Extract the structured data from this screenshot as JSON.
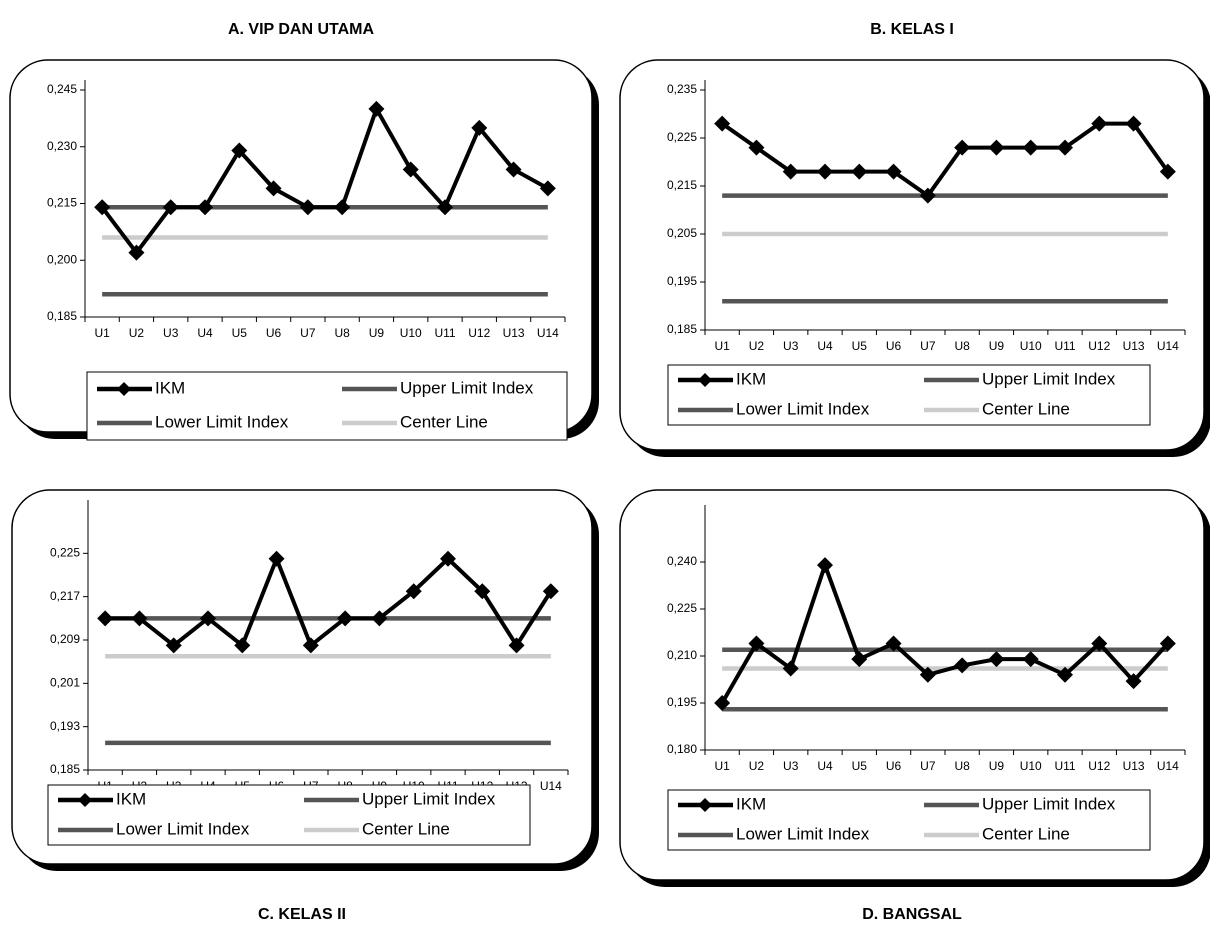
{
  "chart_data": [
    {
      "type": "line",
      "title": "A. VIP DAN UTAMA",
      "title_position": "top",
      "categories": [
        "U1",
        "U2",
        "U3",
        "U4",
        "U5",
        "U6",
        "U7",
        "U8",
        "U9",
        "U10",
        "U11",
        "U12",
        "U13",
        "U14"
      ],
      "ylim": [
        0.185,
        0.245
      ],
      "yticks": [
        {
          "value": 0.185,
          "label": "0,185"
        },
        {
          "value": 0.2,
          "label": "0,200"
        },
        {
          "value": 0.215,
          "label": "0,215"
        },
        {
          "value": 0.23,
          "label": "0,230"
        },
        {
          "value": 0.245,
          "label": "0,245"
        }
      ],
      "series": [
        {
          "name": "IKM",
          "color": "#000000",
          "marker": "diamond",
          "values": [
            0.214,
            0.202,
            0.214,
            0.214,
            0.229,
            0.219,
            0.214,
            0.214,
            0.24,
            0.224,
            0.214,
            0.235,
            0.224,
            0.219
          ]
        },
        {
          "name": "Upper Limit Index",
          "color": "#555555",
          "values": [
            0.214,
            0.214,
            0.214,
            0.214,
            0.214,
            0.214,
            0.214,
            0.214,
            0.214,
            0.214,
            0.214,
            0.214,
            0.214,
            0.214
          ]
        },
        {
          "name": "Lower Limit Index",
          "color": "#555555",
          "values": [
            0.191,
            0.191,
            0.191,
            0.191,
            0.191,
            0.191,
            0.191,
            0.191,
            0.191,
            0.191,
            0.191,
            0.191,
            0.191,
            0.191
          ]
        },
        {
          "name": "Center Line",
          "color": "#cccccc",
          "values": [
            0.206,
            0.206,
            0.206,
            0.206,
            0.206,
            0.206,
            0.206,
            0.206,
            0.206,
            0.206,
            0.206,
            0.206,
            0.206,
            0.206
          ]
        }
      ]
    },
    {
      "type": "line",
      "title": "B. KELAS I",
      "title_position": "top",
      "categories": [
        "U1",
        "U2",
        "U3",
        "U4",
        "U5",
        "U6",
        "U7",
        "U8",
        "U9",
        "U10",
        "U11",
        "U12",
        "U13",
        "U14"
      ],
      "ylim": [
        0.185,
        0.235
      ],
      "yticks": [
        {
          "value": 0.185,
          "label": "0,185"
        },
        {
          "value": 0.195,
          "label": "0,195"
        },
        {
          "value": 0.205,
          "label": "0,205"
        },
        {
          "value": 0.215,
          "label": "0,215"
        },
        {
          "value": 0.225,
          "label": "0,225"
        },
        {
          "value": 0.235,
          "label": "0,235"
        }
      ],
      "series": [
        {
          "name": "IKM",
          "color": "#000000",
          "marker": "diamond",
          "values": [
            0.228,
            0.223,
            0.218,
            0.218,
            0.218,
            0.218,
            0.213,
            0.223,
            0.223,
            0.223,
            0.223,
            0.228,
            0.228,
            0.218
          ]
        },
        {
          "name": "Upper Limit Index",
          "color": "#555555",
          "values": [
            0.213,
            0.213,
            0.213,
            0.213,
            0.213,
            0.213,
            0.213,
            0.213,
            0.213,
            0.213,
            0.213,
            0.213,
            0.213,
            0.213
          ]
        },
        {
          "name": "Lower Limit Index",
          "color": "#555555",
          "values": [
            0.191,
            0.191,
            0.191,
            0.191,
            0.191,
            0.191,
            0.191,
            0.191,
            0.191,
            0.191,
            0.191,
            0.191,
            0.191,
            0.191
          ]
        },
        {
          "name": "Center Line",
          "color": "#cccccc",
          "values": [
            0.205,
            0.205,
            0.205,
            0.205,
            0.205,
            0.205,
            0.205,
            0.205,
            0.205,
            0.205,
            0.205,
            0.205,
            0.205,
            0.205
          ]
        }
      ]
    },
    {
      "type": "line",
      "title": "C. KELAS II",
      "title_position": "bottom",
      "categories": [
        "U1",
        "U2",
        "U3",
        "U4",
        "U5",
        "U6",
        "U7",
        "U8",
        "U9",
        "U10",
        "U11",
        "U12",
        "U13",
        "U14"
      ],
      "ylim": [
        0.185,
        0.233
      ],
      "yticks": [
        {
          "value": 0.185,
          "label": "0,185"
        },
        {
          "value": 0.193,
          "label": "0,193"
        },
        {
          "value": 0.201,
          "label": "0,201"
        },
        {
          "value": 0.209,
          "label": "0,209"
        },
        {
          "value": 0.217,
          "label": "0,217"
        },
        {
          "value": 0.225,
          "label": "0,225"
        }
      ],
      "series": [
        {
          "name": "IKM",
          "color": "#000000",
          "marker": "diamond",
          "values": [
            0.213,
            0.213,
            0.208,
            0.213,
            0.208,
            0.224,
            0.208,
            0.213,
            0.213,
            0.218,
            0.224,
            0.218,
            0.208,
            0.218
          ]
        },
        {
          "name": "Upper Limit Index",
          "color": "#555555",
          "values": [
            0.213,
            0.213,
            0.213,
            0.213,
            0.213,
            0.213,
            0.213,
            0.213,
            0.213,
            0.213,
            0.213,
            0.213,
            0.213,
            0.213
          ]
        },
        {
          "name": "Lower Limit Index",
          "color": "#555555",
          "values": [
            0.19,
            0.19,
            0.19,
            0.19,
            0.19,
            0.19,
            0.19,
            0.19,
            0.19,
            0.19,
            0.19,
            0.19,
            0.19,
            0.19
          ]
        },
        {
          "name": "Center Line",
          "color": "#cccccc",
          "values": [
            0.206,
            0.206,
            0.206,
            0.206,
            0.206,
            0.206,
            0.206,
            0.206,
            0.206,
            0.206,
            0.206,
            0.206,
            0.206,
            0.206
          ]
        }
      ]
    },
    {
      "type": "line",
      "title": "D.  BANGSAL",
      "title_position": "bottom",
      "categories": [
        "U1",
        "U2",
        "U3",
        "U4",
        "U5",
        "U6",
        "U7",
        "U8",
        "U9",
        "U10",
        "U11",
        "U12",
        "U13",
        "U14"
      ],
      "ylim": [
        0.18,
        0.255
      ],
      "yticks": [
        {
          "value": 0.18,
          "label": "0,180"
        },
        {
          "value": 0.195,
          "label": "0,195"
        },
        {
          "value": 0.21,
          "label": "0,210"
        },
        {
          "value": 0.225,
          "label": "0,225"
        },
        {
          "value": 0.24,
          "label": "0,240"
        }
      ],
      "series": [
        {
          "name": "IKM",
          "color": "#000000",
          "marker": "diamond",
          "values": [
            0.195,
            0.214,
            0.206,
            0.239,
            0.209,
            0.214,
            0.204,
            0.207,
            0.209,
            0.209,
            0.204,
            0.214,
            0.202,
            0.214
          ]
        },
        {
          "name": "Upper Limit Index",
          "color": "#555555",
          "values": [
            0.212,
            0.212,
            0.212,
            0.212,
            0.212,
            0.212,
            0.212,
            0.212,
            0.212,
            0.212,
            0.212,
            0.212,
            0.212,
            0.212
          ]
        },
        {
          "name": "Lower Limit Index",
          "color": "#555555",
          "values": [
            0.193,
            0.193,
            0.193,
            0.193,
            0.193,
            0.193,
            0.193,
            0.193,
            0.193,
            0.193,
            0.193,
            0.193,
            0.193,
            0.193
          ]
        },
        {
          "name": "Center Line",
          "color": "#cccccc",
          "values": [
            0.206,
            0.206,
            0.206,
            0.206,
            0.206,
            0.206,
            0.206,
            0.206,
            0.206,
            0.206,
            0.206,
            0.206,
            0.206,
            0.206
          ]
        }
      ]
    }
  ]
}
